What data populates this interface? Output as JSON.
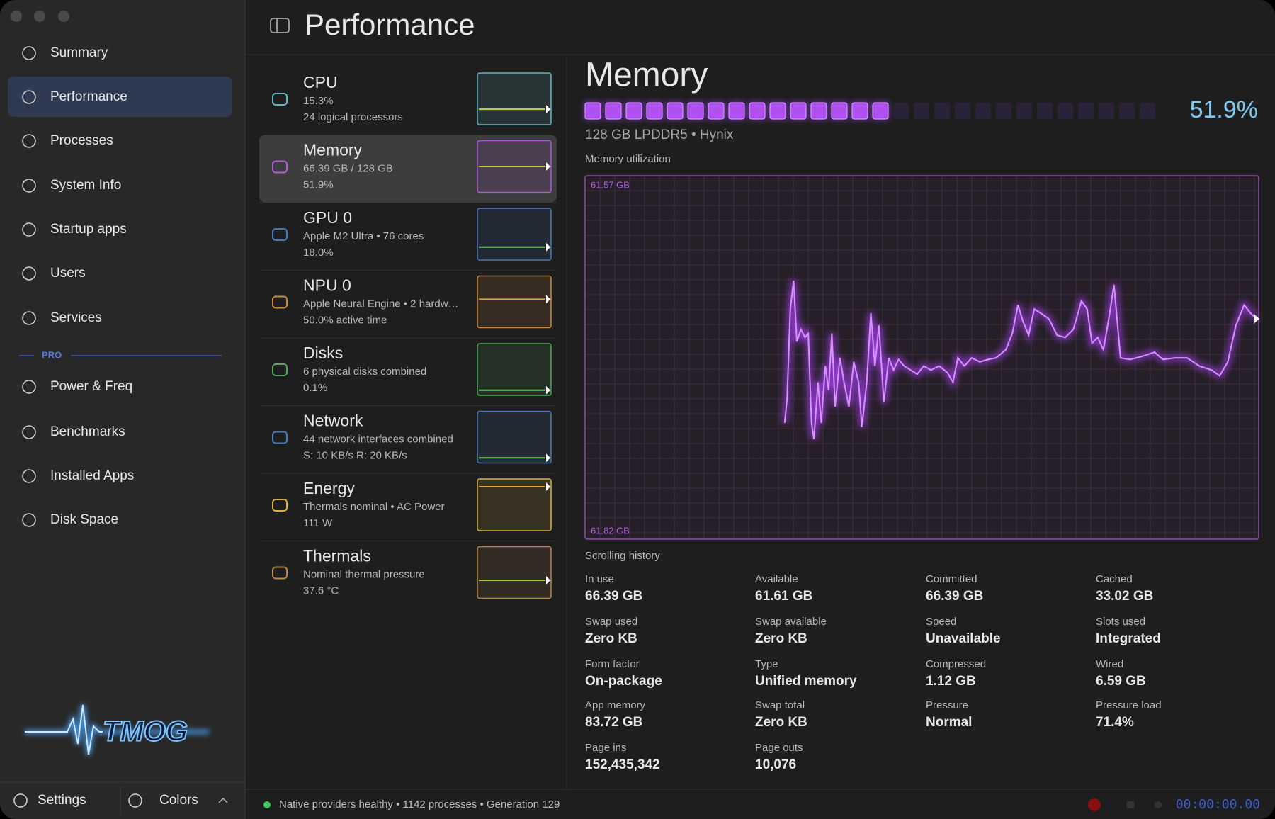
{
  "window": {
    "title": "Performance"
  },
  "sidebar": {
    "items": [
      "Summary",
      "Performance",
      "Processes",
      "System Info",
      "Startup apps",
      "Users",
      "Services"
    ],
    "pro_label": "PRO",
    "pro_items": [
      "Power & Freq",
      "Benchmarks",
      "Installed Apps",
      "Disk Space"
    ],
    "logo": "TMOG",
    "footer": [
      "Settings",
      "Colors"
    ]
  },
  "devices": [
    {
      "name": "CPU",
      "details": [
        "15.3%",
        "24 logical processors"
      ]
    },
    {
      "name": "Memory",
      "details": [
        "66.39 GB / 128 GB",
        "51.9%"
      ]
    },
    {
      "name": "GPU 0",
      "details": [
        "Apple M2 Ultra • 76 cores",
        "18.0%"
      ]
    },
    {
      "name": "NPU 0",
      "details": [
        "Apple Neural Engine • 2 hardw…",
        "50.0% active time"
      ]
    },
    {
      "name": "Disks",
      "details": [
        "6 physical disks combined",
        "0.1%"
      ]
    },
    {
      "name": "Network",
      "details": [
        "44 network interfaces combined",
        "S: 10 KB/s  R: 20 KB/s"
      ]
    },
    {
      "name": "Energy",
      "details": [
        "Thermals nominal • AC Power",
        "111 W"
      ]
    },
    {
      "name": "Thermals",
      "details": [
        "Nominal thermal pressure",
        "37.6 °C"
      ]
    }
  ],
  "detail": {
    "title": "Memory",
    "usage": "51.9%",
    "spec": "128 GB LPDDR5 • Hynix",
    "chart": {
      "label": "Memory utilization",
      "top_label": "61.57 GB",
      "bottom_label": "61.82 GB",
      "caption": "Scrolling history"
    },
    "stats": [
      {
        "label": "In use",
        "value": "66.39 GB"
      },
      {
        "label": "Available",
        "value": "61.61 GB"
      },
      {
        "label": "Committed",
        "value": "66.39 GB"
      },
      {
        "label": "Cached",
        "value": "33.02 GB"
      },
      {
        "label": "Swap used",
        "value": "Zero KB"
      },
      {
        "label": "Swap available",
        "value": "Zero KB"
      },
      {
        "label": "Speed",
        "value": "Unavailable"
      },
      {
        "label": "Slots used",
        "value": "Integrated"
      },
      {
        "label": "Form factor",
        "value": "On-package"
      },
      {
        "label": "Type",
        "value": "Unified memory"
      },
      {
        "label": "Compressed",
        "value": "1.12 GB"
      },
      {
        "label": "Wired",
        "value": "6.59 GB"
      },
      {
        "label": "App memory",
        "value": "83.72 GB"
      },
      {
        "label": "Swap total",
        "value": "Zero KB"
      },
      {
        "label": "Pressure",
        "value": "Normal"
      },
      {
        "label": "Pressure load",
        "value": "71.4%"
      },
      {
        "label": "Page ins",
        "value": "152,435,342"
      },
      {
        "label": "Page outs",
        "value": "10,076"
      }
    ]
  },
  "status": {
    "text": "Native providers healthy • 1142 processes • Generation 129",
    "timer": "00:00:00.00"
  }
}
